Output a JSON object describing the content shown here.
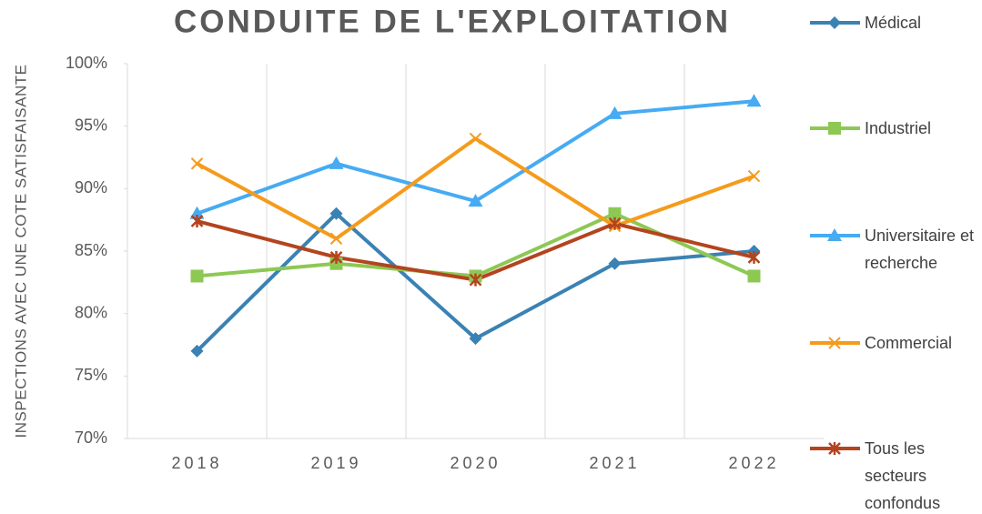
{
  "chart_data": {
    "type": "line",
    "title": "CONDUITE DE L'EXPLOITATION",
    "y_label": "INSPECTIONS AVEC UNE COTE SATISFAISANTE",
    "categories": [
      "2018",
      "2019",
      "2020",
      "2021",
      "2022"
    ],
    "series": [
      {
        "name": "Médical",
        "color": "#3a82b4",
        "marker": "diamond",
        "values": [
          77,
          88,
          78,
          84,
          85
        ]
      },
      {
        "name": "Industriel",
        "color": "#8dc853",
        "marker": "square",
        "values": [
          83,
          84,
          83,
          88,
          83
        ]
      },
      {
        "name": "Universitaire et recherche",
        "color": "#46abf3",
        "marker": "triangle",
        "values": [
          88,
          92,
          89,
          96,
          97
        ]
      },
      {
        "name": "Commercial",
        "color": "#f59b1c",
        "marker": "x",
        "values": [
          92,
          86,
          94,
          87,
          91
        ]
      },
      {
        "name": "Tous les secteurs confondus",
        "color": "#b3441e",
        "marker": "asterisk",
        "values": [
          87.4,
          84.5,
          82.7,
          87.2,
          84.5
        ]
      }
    ],
    "ylim": [
      70,
      100
    ],
    "yticks": [
      {
        "value": 70,
        "label": "70%"
      },
      {
        "value": 75,
        "label": "75%"
      },
      {
        "value": 80,
        "label": "80%"
      },
      {
        "value": 85,
        "label": "85%"
      },
      {
        "value": 90,
        "label": "90%"
      },
      {
        "value": 95,
        "label": "95%"
      },
      {
        "value": 100,
        "label": "100%"
      }
    ],
    "legend": "right"
  }
}
